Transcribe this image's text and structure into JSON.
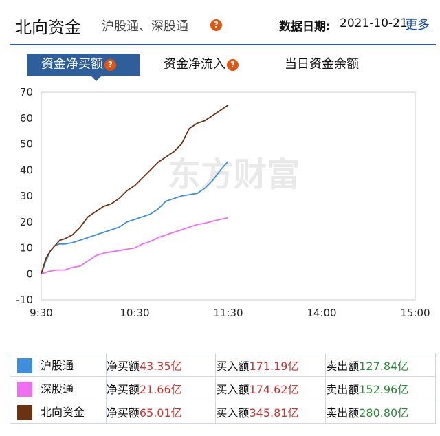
{
  "header": {
    "title": "北向资金",
    "subtitle": "沪股通、深股通",
    "help_glyph": "?",
    "date_label": "数据日期:",
    "date_value": "2021-10-21",
    "more_label": "更多"
  },
  "tabs": [
    {
      "label": "资金净买额",
      "active": true,
      "has_help": true
    },
    {
      "label": "资金净流入",
      "active": false,
      "has_help": true
    },
    {
      "label": "当日资金余额",
      "active": false,
      "has_help": false
    }
  ],
  "watermark": "东方财富",
  "chart_data": {
    "type": "line",
    "x_ticks": [
      "9:30",
      "10:30",
      "11:30",
      "14:00",
      "15:00"
    ],
    "y_ticks": [
      -10,
      0,
      10,
      20,
      30,
      40,
      50,
      60,
      70
    ],
    "ylim": [
      -10,
      70
    ],
    "series": [
      {
        "name": "沪股通",
        "color": "#3d8fdb",
        "x": [
          0,
          3,
          6,
          9,
          12,
          15,
          20,
          25,
          30,
          35,
          40,
          45,
          50,
          55,
          60,
          65,
          70,
          75,
          80,
          85,
          90,
          95,
          100,
          105,
          110,
          115,
          120
        ],
        "values": [
          0,
          5,
          9,
          11,
          11.5,
          11.5,
          12,
          13,
          14,
          15,
          16,
          17,
          18,
          20,
          21,
          22,
          23,
          25,
          28,
          29,
          30,
          30.5,
          31,
          33,
          36,
          40,
          43.35
        ]
      },
      {
        "name": "深股通",
        "color": "#f06ef0",
        "x": [
          0,
          5,
          10,
          15,
          20,
          25,
          30,
          35,
          40,
          45,
          50,
          55,
          60,
          65,
          70,
          75,
          80,
          85,
          90,
          95,
          100,
          105,
          110,
          115,
          120
        ],
        "values": [
          0,
          1,
          1.5,
          1.5,
          2.5,
          3,
          5,
          7,
          8,
          8.5,
          9,
          9.5,
          10,
          11.5,
          12.5,
          14,
          15,
          16,
          17,
          18,
          19,
          19.5,
          20.3,
          21,
          21.66
        ]
      },
      {
        "name": "北向资金",
        "color": "#6b3312",
        "x": [
          0,
          3,
          6,
          9,
          12,
          15,
          20,
          25,
          30,
          35,
          40,
          45,
          50,
          55,
          60,
          65,
          70,
          75,
          80,
          85,
          90,
          95,
          100,
          105,
          110,
          115,
          120
        ],
        "values": [
          0,
          6,
          9,
          11,
          13,
          13.5,
          15,
          18,
          22,
          24,
          26,
          27,
          29,
          32,
          34,
          37,
          40,
          43,
          45,
          47,
          50,
          56,
          58,
          59,
          61,
          63,
          65.01
        ]
      }
    ]
  },
  "legend": {
    "net_label": "净买额",
    "buy_label": "买入额",
    "sell_label": "卖出额",
    "rows": [
      {
        "name": "沪股通",
        "color": "#3d8fdb",
        "net": "43.35亿",
        "buy": "171.19亿",
        "sell": "127.84亿"
      },
      {
        "name": "深股通",
        "color": "#f06ef0",
        "net": "21.66亿",
        "buy": "174.62亿",
        "sell": "152.96亿"
      },
      {
        "name": "北向资金",
        "color": "#6b3312",
        "net": "65.01亿",
        "buy": "345.81亿",
        "sell": "280.80亿"
      }
    ]
  }
}
